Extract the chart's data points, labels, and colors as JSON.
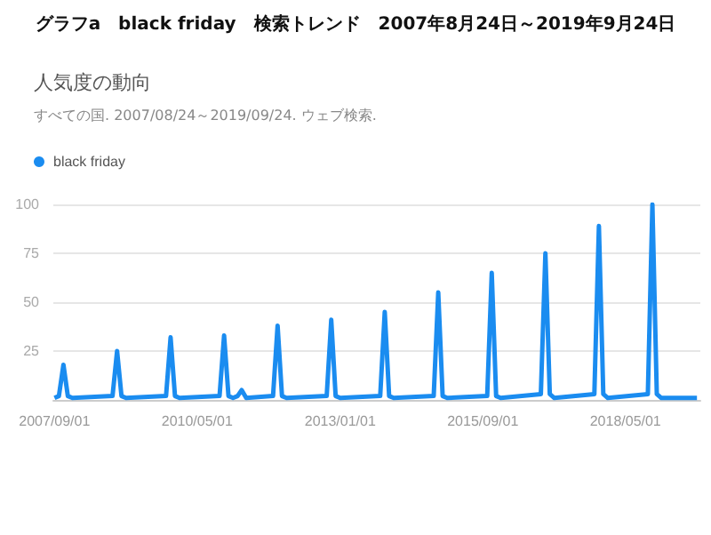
{
  "chart_data": {
    "type": "line",
    "title": "グラフa　black friday　検索トレンド　2007年8月24日～2019年9月24日",
    "subtitle": "人気度の動向",
    "annotations": [
      "すべての国. 2007/08/24～2019/09/24. ウェブ検索."
    ],
    "x": [
      "2007-09",
      "2007-10",
      "2007-11",
      "2007-12",
      "2008-01",
      "2008-10",
      "2008-11",
      "2008-12",
      "2009-01",
      "2009-10",
      "2009-11",
      "2009-12",
      "2010-01",
      "2010-10",
      "2010-11",
      "2010-12",
      "2011-01",
      "2011-02",
      "2011-03",
      "2011-04",
      "2011-10",
      "2011-11",
      "2011-12",
      "2012-01",
      "2012-10",
      "2012-11",
      "2012-12",
      "2013-01",
      "2013-10",
      "2013-11",
      "2013-12",
      "2014-01",
      "2014-10",
      "2014-11",
      "2014-12",
      "2015-01",
      "2015-10",
      "2015-11",
      "2015-12",
      "2016-01",
      "2016-10",
      "2016-11",
      "2016-12",
      "2017-01",
      "2017-10",
      "2017-11",
      "2017-12",
      "2018-01",
      "2018-10",
      "2018-11",
      "2018-12",
      "2019-01",
      "2019-09"
    ],
    "series": [
      {
        "name": "black friday",
        "color": "#1a8cf0",
        "values": [
          1,
          2,
          18,
          2,
          1,
          2,
          25,
          2,
          1,
          2,
          32,
          2,
          1,
          2,
          33,
          2,
          1,
          2,
          5,
          1,
          2,
          38,
          2,
          1,
          2,
          41,
          2,
          1,
          2,
          45,
          2,
          1,
          2,
          55,
          2,
          1,
          2,
          65,
          2,
          1,
          3,
          75,
          3,
          1,
          3,
          89,
          3,
          1,
          3,
          100,
          3,
          1,
          1
        ]
      }
    ],
    "xlim": [
      "2007-08-24",
      "2019-09-24"
    ],
    "xticks": [
      {
        "value": "2007-09-01",
        "label": "2007/09/01"
      },
      {
        "value": "2010-05-01",
        "label": "2010/05/01"
      },
      {
        "value": "2013-01-01",
        "label": "2013/01/01"
      },
      {
        "value": "2015-09-01",
        "label": "2015/09/01"
      },
      {
        "value": "2018-05-01",
        "label": "2018/05/01"
      }
    ],
    "ylim": [
      0,
      100
    ],
    "yticks": [
      25,
      50,
      75,
      100
    ],
    "grid": "y",
    "legend": "top left",
    "marker": "none",
    "line_style": "solid"
  }
}
